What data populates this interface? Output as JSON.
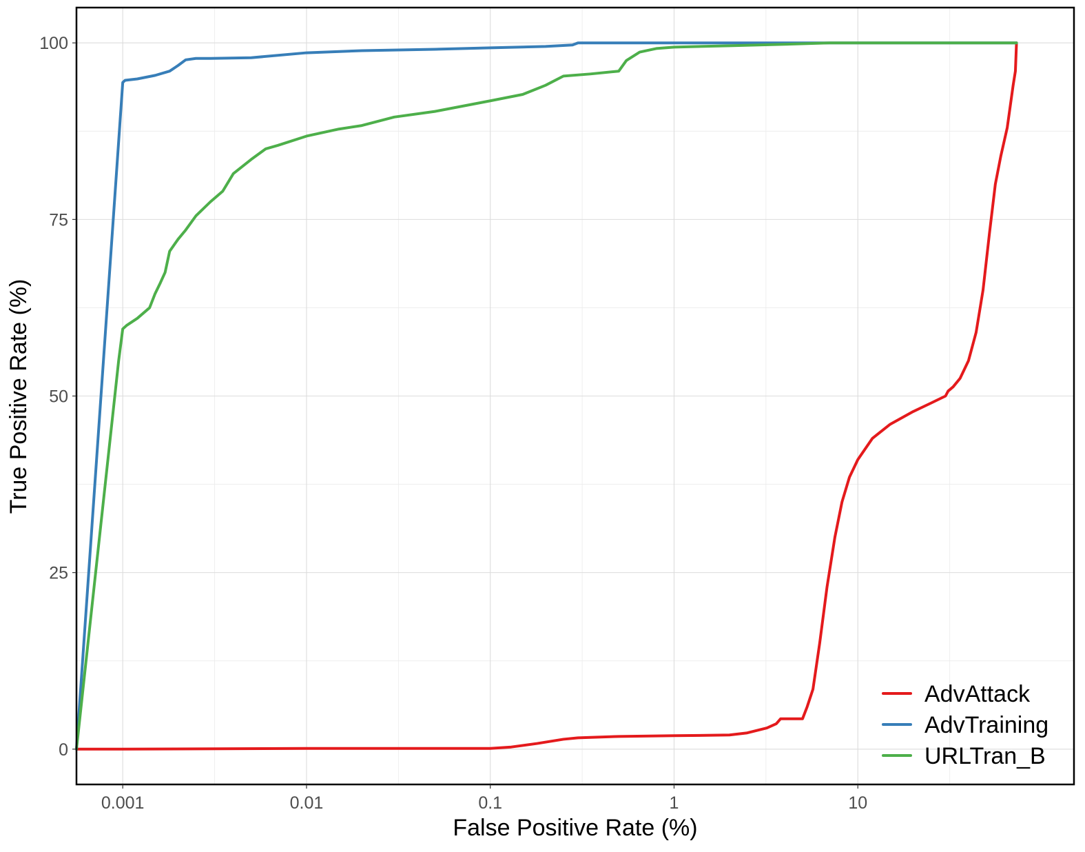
{
  "chart_data": {
    "type": "line",
    "title": "",
    "xlabel": "False Positive Rate (%)",
    "ylabel": "True Positive Rate (%)",
    "x_scale": "log10",
    "xlim": [
      0.00056,
      150
    ],
    "ylim": [
      -5,
      105
    ],
    "x_ticks": [
      0.001,
      0.01,
      0.1,
      1,
      10
    ],
    "x_tick_labels": [
      "0.001",
      "0.01",
      "0.1",
      "1",
      "10"
    ],
    "y_ticks": [
      0,
      25,
      50,
      75,
      100
    ],
    "y_tick_labels": [
      "0",
      "25",
      "50",
      "75",
      "100"
    ],
    "grid": true,
    "legend_position": "bottom-right",
    "series": [
      {
        "name": "AdvAttack",
        "color": "#e41a1c",
        "points": [
          [
            0.00056,
            0
          ],
          [
            0.001,
            0
          ],
          [
            0.01,
            0.1
          ],
          [
            0.05,
            0.1
          ],
          [
            0.1,
            0.1
          ],
          [
            0.13,
            0.3
          ],
          [
            0.18,
            0.8
          ],
          [
            0.25,
            1.4
          ],
          [
            0.3,
            1.6
          ],
          [
            0.5,
            1.8
          ],
          [
            1,
            1.9
          ],
          [
            2,
            2
          ],
          [
            2.5,
            2.3
          ],
          [
            3.2,
            3
          ],
          [
            3.6,
            3.6
          ],
          [
            3.8,
            4.3
          ],
          [
            4.5,
            4.3
          ],
          [
            5,
            4.3
          ],
          [
            5.3,
            6
          ],
          [
            5.7,
            8.5
          ],
          [
            6.2,
            15
          ],
          [
            6.8,
            23
          ],
          [
            7.5,
            30
          ],
          [
            8.2,
            35
          ],
          [
            9,
            38.5
          ],
          [
            10,
            41
          ],
          [
            12,
            44
          ],
          [
            15,
            46
          ],
          [
            20,
            47.8
          ],
          [
            25,
            49
          ],
          [
            30,
            50
          ],
          [
            31,
            50.7
          ],
          [
            33,
            51.3
          ],
          [
            36,
            52.5
          ],
          [
            40,
            55
          ],
          [
            44,
            59
          ],
          [
            48,
            65
          ],
          [
            52,
            73
          ],
          [
            56,
            80
          ],
          [
            60,
            84
          ],
          [
            65,
            88
          ],
          [
            70,
            94
          ],
          [
            72,
            96
          ],
          [
            73,
            100
          ]
        ]
      },
      {
        "name": "AdvTraining",
        "color": "#377eb8",
        "points": [
          [
            0.00056,
            0
          ],
          [
            0.001,
            94.4
          ],
          [
            0.00103,
            94.7
          ],
          [
            0.0012,
            94.9
          ],
          [
            0.0015,
            95.4
          ],
          [
            0.0018,
            96
          ],
          [
            0.002,
            96.8
          ],
          [
            0.0022,
            97.6
          ],
          [
            0.0025,
            97.8
          ],
          [
            0.003,
            97.8
          ],
          [
            0.005,
            97.9
          ],
          [
            0.01,
            98.6
          ],
          [
            0.02,
            98.9
          ],
          [
            0.05,
            99.1
          ],
          [
            0.1,
            99.3
          ],
          [
            0.2,
            99.5
          ],
          [
            0.28,
            99.7
          ],
          [
            0.3,
            100
          ],
          [
            1,
            100
          ],
          [
            10,
            100
          ],
          [
            73,
            100
          ]
        ]
      },
      {
        "name": "URLTran_B",
        "color": "#4daf4a",
        "points": [
          [
            0.00056,
            0
          ],
          [
            0.00095,
            55
          ],
          [
            0.001,
            59.5
          ],
          [
            0.00105,
            60
          ],
          [
            0.0012,
            61
          ],
          [
            0.0014,
            62.5
          ],
          [
            0.0015,
            64.5
          ],
          [
            0.0016,
            66
          ],
          [
            0.0017,
            67.5
          ],
          [
            0.0018,
            70.5
          ],
          [
            0.002,
            72.2
          ],
          [
            0.0022,
            73.5
          ],
          [
            0.0025,
            75.5
          ],
          [
            0.003,
            77.5
          ],
          [
            0.0035,
            79
          ],
          [
            0.004,
            81.5
          ],
          [
            0.005,
            83.5
          ],
          [
            0.006,
            85
          ],
          [
            0.007,
            85.5
          ],
          [
            0.01,
            86.8
          ],
          [
            0.015,
            87.8
          ],
          [
            0.02,
            88.3
          ],
          [
            0.03,
            89.5
          ],
          [
            0.05,
            90.3
          ],
          [
            0.1,
            91.8
          ],
          [
            0.15,
            92.7
          ],
          [
            0.2,
            94
          ],
          [
            0.25,
            95.3
          ],
          [
            0.35,
            95.6
          ],
          [
            0.5,
            96
          ],
          [
            0.55,
            97.5
          ],
          [
            0.65,
            98.7
          ],
          [
            0.8,
            99.2
          ],
          [
            1,
            99.4
          ],
          [
            2,
            99.6
          ],
          [
            4,
            99.8
          ],
          [
            7,
            100
          ],
          [
            10,
            100
          ],
          [
            73,
            100
          ]
        ]
      }
    ]
  }
}
